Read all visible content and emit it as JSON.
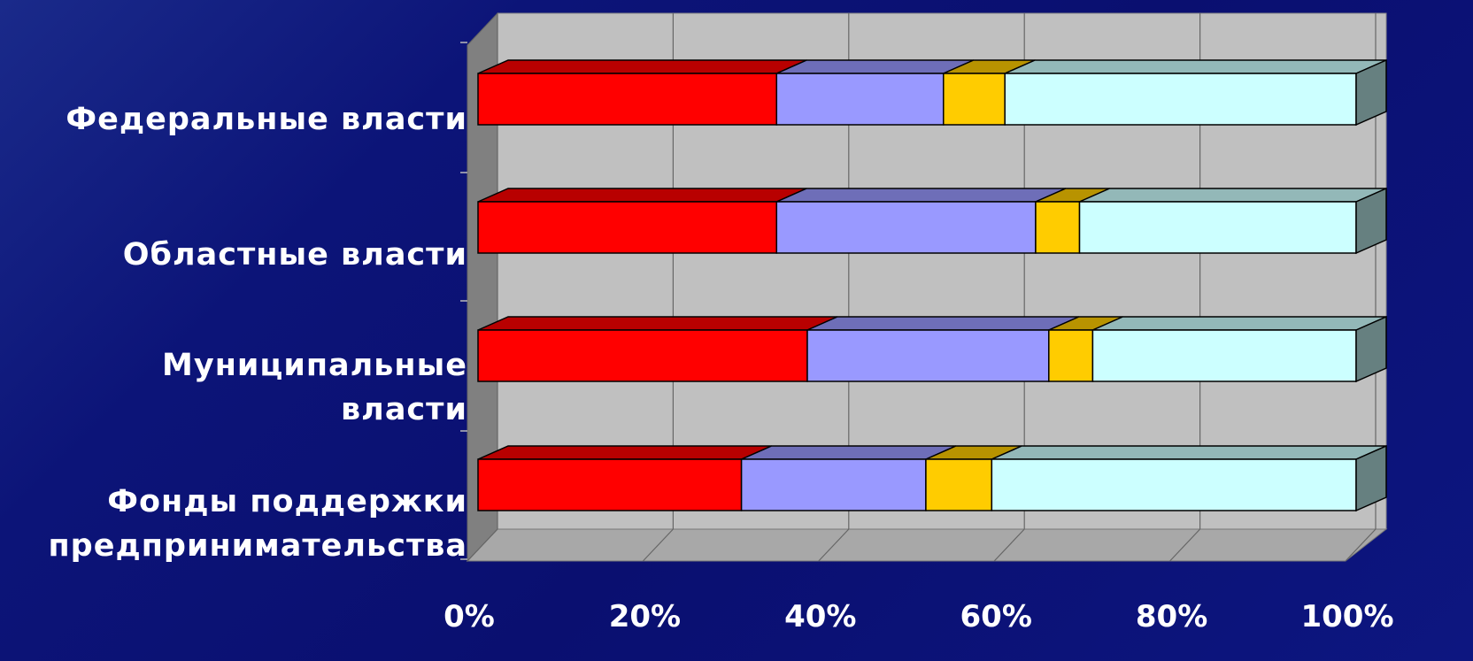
{
  "chart_data": {
    "type": "bar",
    "orientation": "horizontal",
    "stacked": "percent",
    "three_d": true,
    "categories": [
      "Федеральные власти",
      "Областные власти",
      "Муниципальные власти",
      "Фонды поддержки предпринимательства"
    ],
    "category_lines": [
      [
        "Федеральные власти"
      ],
      [
        "Областные власти"
      ],
      [
        "Муниципальные",
        "власти"
      ],
      [
        "Фонды поддержки",
        "предпринимательства"
      ]
    ],
    "series": [
      {
        "color": "#ff0000",
        "values": [
          34,
          34,
          37.5,
          30
        ]
      },
      {
        "color": "#9999ff",
        "values": [
          19,
          29.5,
          27.5,
          21
        ]
      },
      {
        "color": "#ffcc00",
        "values": [
          7,
          5,
          5,
          7.5
        ]
      },
      {
        "color": "#ccffff",
        "values": [
          40,
          31.5,
          30,
          41.5
        ]
      }
    ],
    "xlim": [
      0,
      100
    ],
    "x_ticks": [
      "0%",
      "20%",
      "40%",
      "60%",
      "80%",
      "100%"
    ],
    "grid": true,
    "legend": false,
    "wall_color": "#c0c0c0"
  }
}
